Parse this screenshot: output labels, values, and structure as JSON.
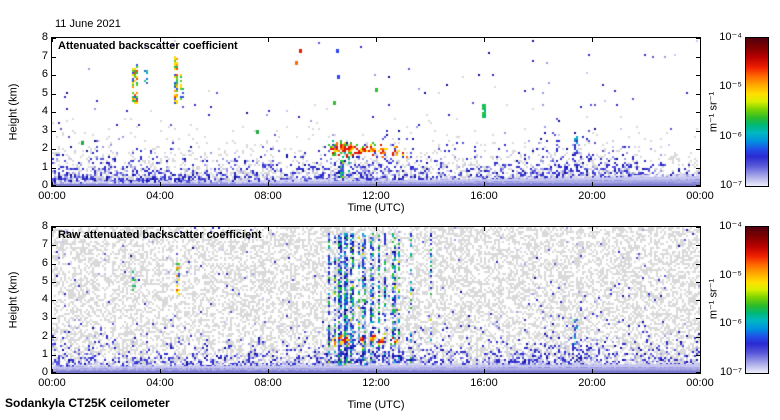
{
  "date_label": "11 June 2021",
  "footer": "Sodankyla CT25K ceilometer",
  "colorbar": {
    "ticks": [
      "10⁻⁴",
      "10⁻⁵",
      "10⁻⁶",
      "10⁻⁷"
    ],
    "unit": "m⁻¹ sr⁻¹",
    "gradient": [
      [
        0,
        "#520010"
      ],
      [
        0.06,
        "#7a0000"
      ],
      [
        0.13,
        "#b80000"
      ],
      [
        0.2,
        "#f02000"
      ],
      [
        0.26,
        "#ff6a00"
      ],
      [
        0.32,
        "#ffaa00"
      ],
      [
        0.38,
        "#ffe000"
      ],
      [
        0.43,
        "#d8ee00"
      ],
      [
        0.48,
        "#7fd400"
      ],
      [
        0.54,
        "#2bbb2b"
      ],
      [
        0.59,
        "#00b878"
      ],
      [
        0.64,
        "#00b8c0"
      ],
      [
        0.7,
        "#0090e0"
      ],
      [
        0.75,
        "#2050e8"
      ],
      [
        0.8,
        "#2a2ad2"
      ],
      [
        0.86,
        "#5555d8"
      ],
      [
        0.92,
        "#9898e6"
      ],
      [
        0.97,
        "#cfcff2"
      ],
      [
        1,
        "#ecedfa"
      ]
    ]
  },
  "panels": [
    {
      "title": "Attenuated backscatter coefficient",
      "ylabel": "Height (km)",
      "xlabel": "Time (UTC)"
    },
    {
      "title": "Raw attenuated backscatter coefficient",
      "ylabel": "Height (km)",
      "xlabel": "Time (UTC)"
    }
  ],
  "palettes": {
    "blues": [
      [
        "#2d2dcc",
        4
      ],
      [
        "#5656dd",
        2
      ],
      [
        "#12129e",
        1
      ],
      [
        "#9b9be8",
        2
      ],
      [
        "#c9c9f1",
        1
      ]
    ],
    "fall": [
      [
        "#ffdd00",
        3
      ],
      [
        "#ff9900",
        2
      ],
      [
        "#5ecb22",
        2
      ],
      [
        "#22bb55",
        1
      ],
      [
        "#ff4400",
        1
      ],
      [
        "#2d55dd",
        1
      ]
    ],
    "greens": [
      [
        "#26c244",
        3
      ],
      [
        "#00b887",
        2
      ],
      [
        "#a8d800",
        1
      ],
      [
        "#2d55dd",
        1
      ]
    ],
    "cyans": [
      [
        "#00a8cc",
        3
      ],
      [
        "#2d66dd",
        2
      ],
      [
        "#26c288",
        1
      ],
      [
        "#3333cc",
        1
      ]
    ],
    "column": [
      [
        "#2633cc",
        4
      ],
      [
        "#00a8cc",
        2
      ],
      [
        "#26bb44",
        2
      ],
      [
        "#7e99ee",
        2
      ],
      [
        "#0a0a88",
        1
      ],
      [
        "#ccdd00",
        0.4
      ]
    ],
    "cloud": [
      [
        "#dd1100",
        3
      ],
      [
        "#ff6a00",
        2
      ],
      [
        "#ffcc00",
        2
      ],
      [
        "#33bb22",
        2
      ],
      [
        "#00b8aa",
        1
      ],
      [
        "#2d44dd",
        1
      ]
    ],
    "hot": [
      [
        "#e01000",
        3
      ],
      [
        "#ff7700",
        2
      ],
      [
        "#ffdd00",
        2
      ]
    ]
  },
  "chart_data": [
    {
      "type": "heatmap",
      "title": "Attenuated backscatter coefficient",
      "xlabel": "Time (UTC)",
      "ylabel": "Height (km)",
      "x_range_hours": [
        0,
        24
      ],
      "y_range_km": [
        0,
        8
      ],
      "xticks": [
        "00:00",
        "04:00",
        "08:00",
        "12:00",
        "16:00",
        "20:00",
        "00:00"
      ],
      "yticks": [
        0,
        1,
        2,
        3,
        4,
        5,
        6,
        7,
        8
      ],
      "color_scale": {
        "type": "log",
        "min": 1e-07,
        "max": 0.0001,
        "unit": "m⁻¹ sr⁻¹",
        "colormap": "jet, white at low end"
      },
      "render": {
        "seed": 7,
        "grayColor": "#d9d9d9",
        "gray": {
          "a": 0.8,
          "scale": 0.8,
          "uniform": false
        },
        "aerosol": {
          "a": 1.15,
          "base": 0.5,
          "bumps": [
            {
              "c": 11.3,
              "s": 1.7,
              "a": 0.22
            },
            {
              "c": 19.2,
              "s": 1.9,
              "a": 0.3
            },
            {
              "c": 0.6,
              "s": 1.4,
              "a": 0.12
            },
            {
              "c": 2.6,
              "s": 0.8,
              "a": 0.15
            }
          ]
        },
        "uniform": 0.004,
        "band": {
          "h0": 0.12,
          "h1": 0.42,
          "pow": 1.25
        },
        "features": [
          {
            "kind": "blob",
            "t": 10.45,
            "h": 1.95,
            "rt": 0.15,
            "rh": 0.3,
            "d": 0.9,
            "pal": "cloud"
          },
          {
            "kind": "blob",
            "t": 10.8,
            "h": 2.0,
            "rt": 0.2,
            "rh": 0.3,
            "d": 0.95,
            "pal": "cloud"
          },
          {
            "kind": "blob",
            "t": 11.1,
            "h": 2.0,
            "rt": 0.15,
            "rh": 0.28,
            "d": 0.9,
            "pal": "cloud"
          },
          {
            "kind": "blob",
            "t": 11.5,
            "h": 1.9,
            "rt": 0.12,
            "rh": 0.25,
            "d": 0.85,
            "pal": "cloud"
          },
          {
            "kind": "blob",
            "t": 11.9,
            "h": 1.95,
            "rt": 0.15,
            "rh": 0.25,
            "d": 0.85,
            "pal": "cloud"
          },
          {
            "kind": "blob",
            "t": 12.25,
            "h": 1.9,
            "rt": 0.12,
            "rh": 0.25,
            "d": 0.8,
            "pal": "cloud"
          },
          {
            "kind": "blob",
            "t": 12.7,
            "h": 1.85,
            "rt": 0.12,
            "rh": 0.22,
            "d": 0.8,
            "pal": "cloud"
          },
          {
            "kind": "blob",
            "t": 13.05,
            "h": 1.7,
            "rt": 0.08,
            "rh": 0.18,
            "d": 0.6,
            "pal": "cloud"
          },
          {
            "kind": "streak",
            "t": 3.05,
            "w": 0.1,
            "h0": 4.4,
            "h1": 6.6,
            "d": 0.7,
            "pal": "fall"
          },
          {
            "kind": "streak",
            "t": 3.5,
            "w": 0.06,
            "h0": 5.5,
            "h1": 6.3,
            "d": 0.3,
            "pal": "cyans"
          },
          {
            "kind": "streak",
            "t": 4.6,
            "w": 0.1,
            "h0": 4.4,
            "h1": 7.0,
            "d": 0.75,
            "pal": "fall"
          },
          {
            "kind": "streak",
            "t": 4.8,
            "w": 0.06,
            "h0": 4.6,
            "h1": 6.2,
            "d": 0.45,
            "pal": "fall"
          },
          {
            "kind": "streak",
            "t": 10.75,
            "w": 0.06,
            "h0": 0.4,
            "h1": 1.6,
            "d": 0.4,
            "pal": "greens"
          },
          {
            "kind": "streak",
            "t": 11.0,
            "w": 0.06,
            "h0": 0.4,
            "h1": 1.6,
            "d": 0.4,
            "pal": "greens"
          },
          {
            "kind": "streak",
            "t": 16.0,
            "w": 0.07,
            "h0": 3.7,
            "h1": 4.4,
            "d": 0.8,
            "pal": "greens"
          },
          {
            "kind": "streak",
            "t": 19.4,
            "w": 0.07,
            "h0": 1.7,
            "h1": 2.75,
            "d": 0.65,
            "pal": "cyans"
          },
          {
            "kind": "dot",
            "t": 9.05,
            "h": 6.65,
            "c": "#ff6a00"
          },
          {
            "kind": "dot",
            "t": 9.2,
            "h": 7.3,
            "c": "#dd2200"
          },
          {
            "kind": "dot",
            "t": 10.55,
            "h": 7.3,
            "c": "#2d44ee"
          },
          {
            "kind": "dot",
            "t": 10.45,
            "h": 4.5,
            "c": "#33bb33"
          },
          {
            "kind": "dot",
            "t": 10.6,
            "h": 5.9,
            "c": "#2d44ee"
          },
          {
            "kind": "dot",
            "t": 12.0,
            "h": 5.2,
            "c": "#33bb33"
          },
          {
            "kind": "dot",
            "t": 7.6,
            "h": 2.9,
            "c": "#22aa44"
          },
          {
            "kind": "dot",
            "t": 1.1,
            "h": 2.3,
            "c": "#22aa44"
          }
        ]
      }
    },
    {
      "type": "heatmap",
      "title": "Raw attenuated backscatter coefficient",
      "xlabel": "Time (UTC)",
      "ylabel": "Height (km)",
      "x_range_hours": [
        0,
        24
      ],
      "y_range_km": [
        0,
        8
      ],
      "xticks": [
        "00:00",
        "04:00",
        "08:00",
        "12:00",
        "16:00",
        "20:00",
        "00:00"
      ],
      "yticks": [
        0,
        1,
        2,
        3,
        4,
        5,
        6,
        7,
        8
      ],
      "color_scale": {
        "type": "log",
        "min": 1e-07,
        "max": 0.0001,
        "unit": "m⁻¹ sr⁻¹",
        "colormap": "jet, white at low end"
      },
      "render": {
        "seed": 13,
        "grayColor": "#d9d9d9",
        "gray": {
          "a": 0.45,
          "scale": 1,
          "uniform": true
        },
        "aerosol": {
          "a": 1.1,
          "base": 0.55,
          "bumps": [
            {
              "c": 11.5,
              "s": 2.0,
              "a": 0.3
            },
            {
              "c": 19,
              "s": 2.2,
              "a": 0.25
            },
            {
              "c": 0.8,
              "s": 1.5,
              "a": 0.15
            },
            {
              "c": 4.6,
              "s": 0.6,
              "a": 0.1
            }
          ]
        },
        "uniform": 0.02,
        "band": {
          "h0": 0.35,
          "h1": 0.15,
          "pow": 1
        },
        "features": [
          {
            "kind": "blob",
            "t": 10.45,
            "h": 1.8,
            "rt": 0.1,
            "rh": 0.22,
            "d": 0.85,
            "pal": "cloud"
          },
          {
            "kind": "blob",
            "t": 10.7,
            "h": 1.8,
            "rt": 0.1,
            "rh": 0.22,
            "d": 0.85,
            "pal": "cloud"
          },
          {
            "kind": "blob",
            "t": 10.95,
            "h": 1.8,
            "rt": 0.1,
            "rh": 0.22,
            "d": 0.85,
            "pal": "cloud"
          },
          {
            "kind": "blob",
            "t": 11.5,
            "h": 1.8,
            "rt": 0.1,
            "rh": 0.22,
            "d": 0.85,
            "pal": "cloud"
          },
          {
            "kind": "blob",
            "t": 11.9,
            "h": 1.8,
            "rt": 0.1,
            "rh": 0.22,
            "d": 0.8,
            "pal": "cloud"
          },
          {
            "kind": "blob",
            "t": 12.2,
            "h": 1.8,
            "rt": 0.1,
            "rh": 0.22,
            "d": 0.8,
            "pal": "cloud"
          },
          {
            "kind": "blob",
            "t": 12.65,
            "h": 1.8,
            "rt": 0.1,
            "rh": 0.22,
            "d": 0.8,
            "pal": "cloud"
          },
          {
            "kind": "streak",
            "t": 10.25,
            "w": 0.06,
            "h0": 0.35,
            "h1": 7.7,
            "d": 0.5,
            "pal": "column"
          },
          {
            "kind": "streak",
            "t": 10.5,
            "w": 0.05,
            "h0": 0.35,
            "h1": 7.7,
            "d": 0.55,
            "pal": "column"
          },
          {
            "kind": "streak",
            "t": 10.68,
            "w": 0.09,
            "h0": 0.35,
            "h1": 7.7,
            "d": 0.75,
            "pal": "column"
          },
          {
            "kind": "streak",
            "t": 10.9,
            "w": 0.09,
            "h0": 0.35,
            "h1": 7.7,
            "d": 0.8,
            "pal": "column"
          },
          {
            "kind": "streak",
            "t": 11.1,
            "w": 0.07,
            "h0": 0.35,
            "h1": 7.7,
            "d": 0.6,
            "pal": "column"
          },
          {
            "kind": "streak",
            "t": 11.35,
            "w": 0.04,
            "h0": 0.35,
            "h1": 7.7,
            "d": 0.45,
            "pal": "column"
          },
          {
            "kind": "streak",
            "t": 11.55,
            "w": 0.05,
            "h0": 0.35,
            "h1": 7.7,
            "d": 0.55,
            "pal": "column"
          },
          {
            "kind": "streak",
            "t": 11.85,
            "w": 0.07,
            "h0": 0.35,
            "h1": 7.7,
            "d": 0.55,
            "pal": "column"
          },
          {
            "kind": "streak",
            "t": 12.1,
            "w": 0.04,
            "h0": 0.35,
            "h1": 7.7,
            "d": 0.5,
            "pal": "column"
          },
          {
            "kind": "streak",
            "t": 12.35,
            "w": 0.05,
            "h0": 0.35,
            "h1": 7.7,
            "d": 0.5,
            "pal": "column"
          },
          {
            "kind": "streak",
            "t": 12.65,
            "w": 0.06,
            "h0": 0.35,
            "h1": 7.7,
            "d": 0.55,
            "pal": "column"
          },
          {
            "kind": "streak",
            "t": 12.85,
            "w": 0.04,
            "h0": 0.35,
            "h1": 7.7,
            "d": 0.45,
            "pal": "column"
          },
          {
            "kind": "streak",
            "t": 13.3,
            "w": 0.04,
            "h0": 0.35,
            "h1": 7.7,
            "d": 0.35,
            "pal": "column"
          },
          {
            "kind": "streak",
            "t": 14.05,
            "w": 0.04,
            "h0": 0.35,
            "h1": 7.7,
            "d": 0.3,
            "pal": "column"
          },
          {
            "kind": "streak",
            "t": 4.65,
            "w": 0.06,
            "h0": 4.3,
            "h1": 6.0,
            "d": 0.55,
            "pal": "fall"
          },
          {
            "kind": "streak",
            "t": 3.05,
            "w": 0.05,
            "h0": 4.5,
            "h1": 5.6,
            "d": 0.25,
            "pal": "greens"
          },
          {
            "kind": "streak",
            "t": 19.4,
            "w": 0.06,
            "h0": 1.5,
            "h1": 3.0,
            "d": 0.5,
            "pal": "cyans"
          }
        ]
      }
    }
  ]
}
